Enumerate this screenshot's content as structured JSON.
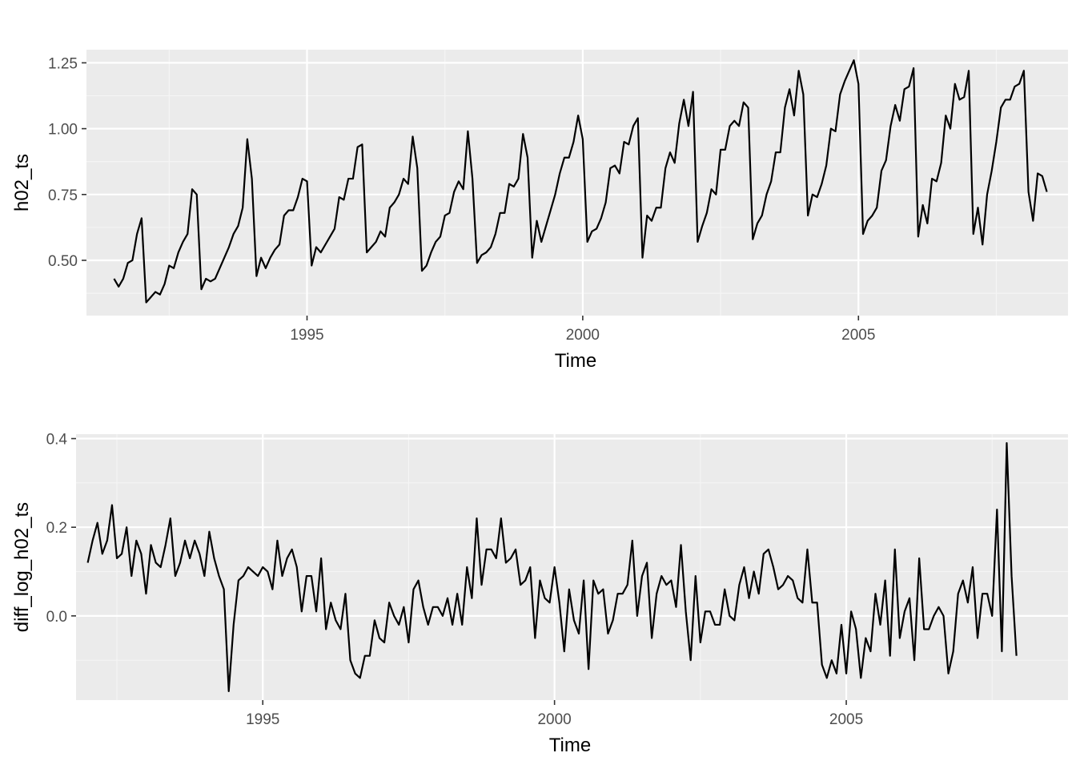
{
  "colors": {
    "panel_background": "#ebebeb",
    "grid_major": "#ffffff",
    "grid_minor": "#f5f5f5",
    "line": "#000000",
    "tick_text": "#4d4d4d"
  },
  "chart_data": [
    {
      "type": "line",
      "title": "",
      "xlabel": "Time",
      "ylabel": "h02_ts",
      "xlim": [
        1991.0,
        2008.8
      ],
      "ylim": [
        0.29,
        1.3
      ],
      "xticks": [
        1995,
        2000,
        2005
      ],
      "xtick_labels": [
        "1995",
        "2000",
        "2005"
      ],
      "yticks": [
        0.5,
        0.75,
        1.0,
        1.25
      ],
      "ytick_labels": [
        "0.50",
        "0.75",
        "1.00",
        "1.25"
      ],
      "grid": true,
      "x_start": 1991.5,
      "x_step": 0.0833333,
      "series": [
        {
          "values": [
            0.43,
            0.4,
            0.43,
            0.49,
            0.5,
            0.6,
            0.66,
            0.34,
            0.36,
            0.38,
            0.37,
            0.41,
            0.48,
            0.47,
            0.53,
            0.57,
            0.6,
            0.77,
            0.75,
            0.39,
            0.43,
            0.42,
            0.43,
            0.47,
            0.51,
            0.55,
            0.6,
            0.63,
            0.7,
            0.96,
            0.81,
            0.44,
            0.51,
            0.47,
            0.51,
            0.54,
            0.56,
            0.67,
            0.69,
            0.69,
            0.74,
            0.81,
            0.8,
            0.48,
            0.55,
            0.53,
            0.56,
            0.59,
            0.62,
            0.74,
            0.73,
            0.81,
            0.81,
            0.93,
            0.94,
            0.53,
            0.55,
            0.57,
            0.61,
            0.59,
            0.7,
            0.72,
            0.75,
            0.81,
            0.79,
            0.97,
            0.85,
            0.46,
            0.48,
            0.53,
            0.57,
            0.59,
            0.67,
            0.68,
            0.76,
            0.8,
            0.77,
            0.99,
            0.81,
            0.49,
            0.52,
            0.53,
            0.55,
            0.6,
            0.68,
            0.68,
            0.79,
            0.78,
            0.81,
            0.98,
            0.89,
            0.51,
            0.65,
            0.57,
            0.63,
            0.69,
            0.75,
            0.83,
            0.89,
            0.89,
            0.95,
            1.05,
            0.96,
            0.57,
            0.61,
            0.62,
            0.66,
            0.72,
            0.85,
            0.86,
            0.83,
            0.95,
            0.94,
            1.01,
            1.04,
            0.51,
            0.67,
            0.65,
            0.7,
            0.7,
            0.85,
            0.91,
            0.87,
            1.02,
            1.11,
            1.01,
            1.14,
            0.57,
            0.63,
            0.68,
            0.77,
            0.75,
            0.92,
            0.92,
            1.01,
            1.03,
            1.01,
            1.1,
            1.08,
            0.58,
            0.64,
            0.67,
            0.75,
            0.8,
            0.91,
            0.91,
            1.08,
            1.15,
            1.05,
            1.22,
            1.13,
            0.67,
            0.75,
            0.74,
            0.79,
            0.86,
            1.0,
            0.99,
            1.13,
            1.18,
            1.22,
            1.26,
            1.17,
            0.6,
            0.65,
            0.67,
            0.7,
            0.84,
            0.88,
            1.01,
            1.09,
            1.03,
            1.15,
            1.16,
            1.23,
            0.59,
            0.71,
            0.64,
            0.81,
            0.8,
            0.87,
            1.05,
            1.0,
            1.17,
            1.11,
            1.12,
            1.22,
            0.6,
            0.7,
            0.56,
            0.75,
            0.84,
            0.95,
            1.08,
            1.11,
            1.11,
            1.16,
            1.17,
            1.22,
            0.76,
            0.65,
            0.83,
            0.82,
            0.76
          ]
        }
      ]
    },
    {
      "type": "line",
      "title": "",
      "xlabel": "Time",
      "ylabel": "diff_log_h02_ts",
      "xlim": [
        1991.8,
        2008.8
      ],
      "ylim": [
        -0.19,
        0.41
      ],
      "xticks": [
        1995,
        2000,
        2005
      ],
      "xtick_labels": [
        "1995",
        "2000",
        "2005"
      ],
      "yticks": [
        0.0,
        0.2,
        0.4
      ],
      "ytick_labels": [
        "0.0",
        "0.2",
        "0.4"
      ],
      "grid": true,
      "x_start": 1992.0,
      "x_step": 0.0833333,
      "series": [
        {
          "values": [
            0.12,
            0.17,
            0.21,
            0.14,
            0.17,
            0.25,
            0.13,
            0.14,
            0.2,
            0.09,
            0.17,
            0.14,
            0.05,
            0.16,
            0.12,
            0.11,
            0.16,
            0.22,
            0.09,
            0.12,
            0.17,
            0.13,
            0.17,
            0.14,
            0.09,
            0.19,
            0.13,
            0.09,
            0.06,
            -0.17,
            -0.02,
            0.08,
            0.09,
            0.11,
            0.1,
            0.09,
            0.11,
            0.1,
            0.06,
            0.17,
            0.09,
            0.13,
            0.15,
            0.11,
            0.01,
            0.09,
            0.09,
            0.01,
            0.13,
            -0.03,
            0.03,
            -0.01,
            -0.03,
            0.05,
            -0.1,
            -0.13,
            -0.14,
            -0.09,
            -0.09,
            -0.01,
            -0.05,
            -0.06,
            0.03,
            0.0,
            -0.02,
            0.02,
            -0.06,
            0.06,
            0.08,
            0.02,
            -0.02,
            0.02,
            0.02,
            0.0,
            0.04,
            -0.02,
            0.05,
            -0.02,
            0.11,
            0.04,
            0.22,
            0.07,
            0.15,
            0.15,
            0.13,
            0.22,
            0.12,
            0.13,
            0.15,
            0.07,
            0.08,
            0.11,
            -0.05,
            0.08,
            0.04,
            0.03,
            0.11,
            0.03,
            -0.08,
            0.06,
            -0.01,
            -0.04,
            0.08,
            -0.12,
            0.08,
            0.05,
            0.06,
            -0.04,
            -0.01,
            0.05,
            0.05,
            0.07,
            0.17,
            0.0,
            0.09,
            0.12,
            -0.05,
            0.05,
            0.09,
            0.07,
            0.08,
            0.02,
            0.16,
            0.01,
            -0.1,
            0.09,
            -0.06,
            0.01,
            0.01,
            -0.02,
            -0.02,
            0.06,
            0.0,
            -0.01,
            0.07,
            0.11,
            0.04,
            0.1,
            0.05,
            0.14,
            0.15,
            0.11,
            0.06,
            0.07,
            0.09,
            0.08,
            0.04,
            0.03,
            0.15,
            0.03,
            0.03,
            -0.11,
            -0.14,
            -0.1,
            -0.13,
            -0.02,
            -0.13,
            0.01,
            -0.03,
            -0.14,
            -0.05,
            -0.08,
            0.05,
            -0.02,
            0.08,
            -0.09,
            0.15,
            -0.05,
            0.01,
            0.04,
            -0.1,
            0.13,
            -0.03,
            -0.03,
            0.0,
            0.02,
            0.0,
            -0.13,
            -0.08,
            0.05,
            0.08,
            0.03,
            0.11,
            -0.05,
            0.05,
            0.05,
            0.0,
            0.24,
            -0.08,
            0.39,
            0.09,
            -0.09
          ]
        }
      ]
    }
  ]
}
